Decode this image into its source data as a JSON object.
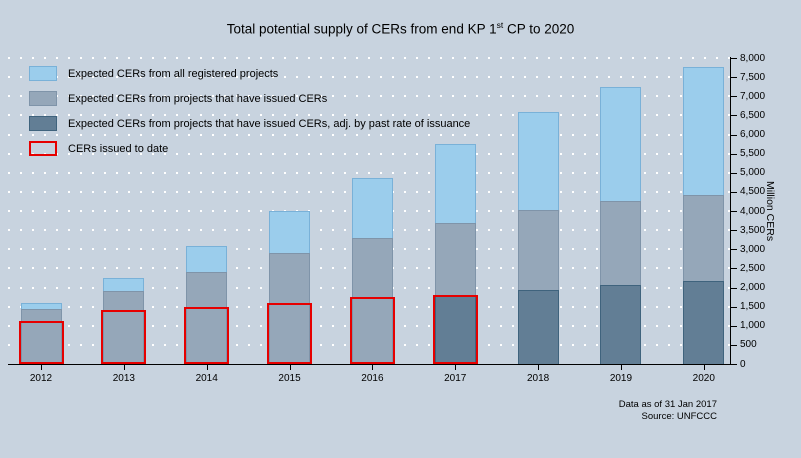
{
  "title": {
    "prefix": "Total potential supply of CERs from end KP 1",
    "superscript": "st",
    "suffix": " CP to 2020"
  },
  "footer": {
    "line1": "Data as of 31 Jan 2017",
    "line2": "Source: UNFCCC"
  },
  "colors": {
    "background": "#c8d3df",
    "registered_fill": "#9bcdec",
    "registered_border": "#79b1d8",
    "issued_fill": "#95a7b9",
    "issued_border": "#7f94a9",
    "adjusted_fill": "#627e95",
    "adjusted_border": "#3f637d",
    "issued_to_date_outline": "#e60000",
    "axis": "#000000",
    "gridline": "#ffffff"
  },
  "chart_data": {
    "type": "bar",
    "subtype": "overlaid-bars",
    "title": "Total potential supply of CERs from end KP 1st CP to 2020",
    "xlabel": "",
    "ylabel": "Million CERs",
    "ylim": [
      0,
      8000
    ],
    "ytick_step": 500,
    "grid": "white dotted horizontal lines every 500",
    "legend_position": "top-left inside plot",
    "categories": [
      "2012",
      "2013",
      "2014",
      "2015",
      "2016",
      "2017",
      "2018",
      "2019",
      "2020"
    ],
    "y_ticks": [
      "0",
      "500",
      "1,000",
      "1,500",
      "2,000",
      "2,500",
      "3,000",
      "3,500",
      "4,000",
      "4,500",
      "5,000",
      "5,500",
      "6,000",
      "6,500",
      "7,000",
      "7,500",
      "8,000"
    ],
    "series": [
      {
        "name": "Expected CERs from all registered projects",
        "style": "fill",
        "values": [
          1600,
          2250,
          3080,
          4000,
          4870,
          5750,
          6580,
          7240,
          7770
        ]
      },
      {
        "name": "Expected CERs from projects that have issued CERs",
        "style": "fill",
        "values": [
          1450,
          1920,
          2400,
          2890,
          3300,
          3680,
          4030,
          4260,
          4430
        ]
      },
      {
        "name": "Expected CERs from projects that have issued CERs, adj. by past rate of issuance",
        "style": "fill",
        "values": [
          null,
          null,
          null,
          null,
          null,
          1800,
          1940,
          2070,
          2160
        ]
      },
      {
        "name": "CERs issued to date",
        "style": "outline",
        "values": [
          1130,
          1400,
          1500,
          1600,
          1740,
          1800,
          null,
          null,
          null
        ]
      }
    ]
  }
}
